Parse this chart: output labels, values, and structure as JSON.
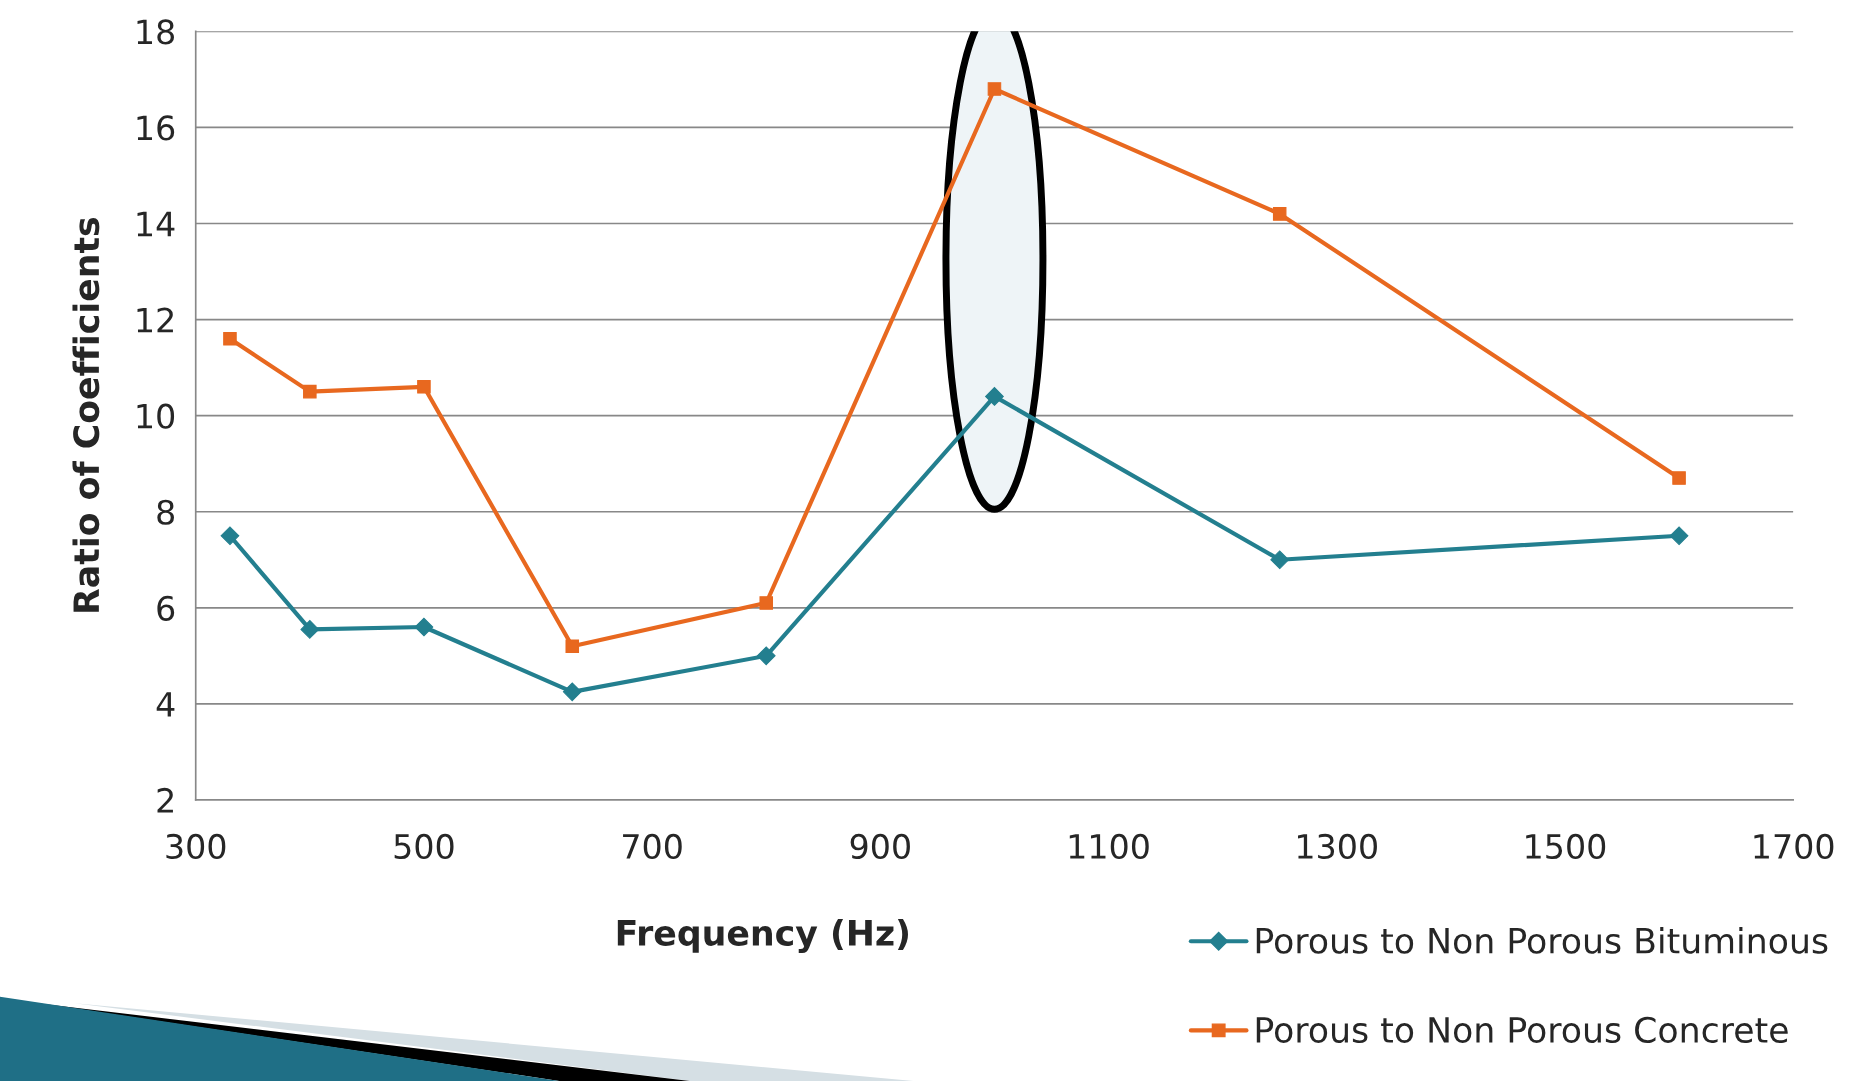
{
  "chart_data": {
    "type": "line",
    "xlabel": "Frequency (Hz)",
    "ylabel": "Ratio of Coefficients",
    "x": [
      330,
      400,
      500,
      630,
      800,
      1000,
      1250,
      1600
    ],
    "series": [
      {
        "name": "Porous to Non Porous Bituminous",
        "color": "#237f8f",
        "marker": "diamond",
        "values": [
          7.5,
          5.55,
          5.6,
          4.25,
          5.0,
          10.4,
          7.0,
          7.5
        ]
      },
      {
        "name": "Porous to Non Porous Concrete",
        "color": "#e8681f",
        "marker": "square",
        "values": [
          11.6,
          10.5,
          10.6,
          5.2,
          6.1,
          16.8,
          14.2,
          8.7
        ]
      }
    ],
    "xlim": [
      300,
      1700
    ],
    "xticks": [
      300,
      500,
      700,
      900,
      1100,
      1300,
      1500,
      1700
    ],
    "ylim": [
      2,
      18
    ],
    "yticks": [
      2,
      4,
      6,
      8,
      10,
      12,
      14,
      16,
      18
    ],
    "grid": "y",
    "legend": "bottom right",
    "line_style": "solid"
  }
}
